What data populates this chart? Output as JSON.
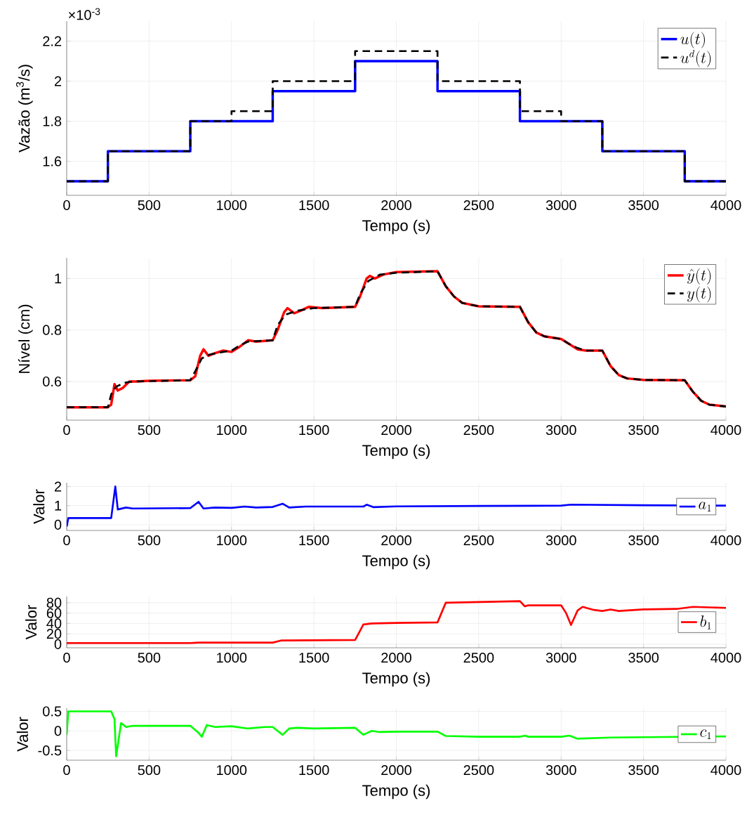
{
  "chart_data": [
    {
      "type": "step",
      "xlabel": "Tempo (s)",
      "ylabel": "Vazão (m$^{3}$/s)",
      "annotations": [
        "×10$^{-3}$"
      ],
      "xlim": [
        0,
        4000
      ],
      "ylim": [
        1.43,
        2.3
      ],
      "xticks": [
        0,
        500,
        1000,
        1500,
        2000,
        2500,
        3000,
        3500,
        4000
      ],
      "yticks": [
        1.6,
        1.8,
        2,
        2.2
      ],
      "grid": true,
      "legend": "top right",
      "series": [
        {
          "name": "u(t)",
          "color": "#0000ff",
          "line_style": "solid",
          "x": [
            0,
            250,
            750,
            1250,
            1750,
            2250,
            2750,
            3250,
            3750,
            4000
          ],
          "values": [
            1.5,
            1.65,
            1.8,
            1.95,
            2.1,
            1.95,
            1.8,
            1.65,
            1.5,
            1.5
          ]
        },
        {
          "name": "u^{d}(t)",
          "color": "#000000",
          "line_style": "dashed",
          "x": [
            0,
            250,
            750,
            1000,
            1250,
            1750,
            2250,
            2750,
            3000,
            3250,
            3750,
            4000
          ],
          "values": [
            1.5,
            1.65,
            1.8,
            1.85,
            2.0,
            2.15,
            2.0,
            1.85,
            1.8,
            1.65,
            1.5,
            1.5
          ]
        }
      ]
    },
    {
      "type": "line",
      "xlabel": "Tempo (s)",
      "ylabel": "Nível (cm)",
      "xlim": [
        0,
        4000
      ],
      "ylim": [
        0.45,
        1.08
      ],
      "xticks": [
        0,
        500,
        1000,
        1500,
        2000,
        2500,
        3000,
        3500,
        4000
      ],
      "yticks": [
        0.6,
        0.8,
        1
      ],
      "grid": true,
      "legend": "top right",
      "series": [
        {
          "name": "\\hat{y}(t)",
          "color": "#ff0000",
          "line_style": "solid",
          "x": [
            0,
            250,
            270,
            290,
            310,
            340,
            380,
            420,
            500,
            750,
            780,
            810,
            830,
            860,
            900,
            950,
            1000,
            1050,
            1100,
            1150,
            1250,
            1280,
            1320,
            1340,
            1380,
            1420,
            1470,
            1550,
            1750,
            1780,
            1820,
            1840,
            1870,
            1920,
            2000,
            2250,
            2300,
            2350,
            2400,
            2500,
            2750,
            2800,
            2850,
            2900,
            3000,
            3050,
            3100,
            3150,
            3250,
            3300,
            3350,
            3400,
            3500,
            3750,
            3800,
            3850,
            3900,
            4000
          ],
          "values": [
            0.5,
            0.5,
            0.51,
            0.59,
            0.565,
            0.575,
            0.6,
            0.6,
            0.603,
            0.605,
            0.62,
            0.7,
            0.725,
            0.7,
            0.71,
            0.72,
            0.715,
            0.735,
            0.76,
            0.755,
            0.76,
            0.8,
            0.87,
            0.885,
            0.865,
            0.875,
            0.89,
            0.885,
            0.89,
            0.93,
            1.0,
            1.01,
            1.0,
            1.015,
            1.025,
            1.028,
            0.97,
            0.93,
            0.905,
            0.892,
            0.89,
            0.83,
            0.79,
            0.775,
            0.765,
            0.745,
            0.725,
            0.72,
            0.72,
            0.66,
            0.625,
            0.612,
            0.606,
            0.605,
            0.56,
            0.525,
            0.51,
            0.503
          ]
        },
        {
          "name": "y(t)",
          "color": "#000000",
          "line_style": "dashed",
          "x": [
            0,
            250,
            270,
            300,
            350,
            400,
            750,
            780,
            820,
            870,
            950,
            1000,
            1050,
            1100,
            1250,
            1280,
            1330,
            1400,
            1500,
            1750,
            1780,
            1830,
            1900,
            2000,
            2250,
            2300,
            2350,
            2400,
            2500,
            2750,
            2800,
            2850,
            2900,
            3000,
            3050,
            3100,
            3150,
            3250,
            3300,
            3350,
            3400,
            3500,
            3750,
            3800,
            3850,
            3900,
            4000
          ],
          "values": [
            0.5,
            0.5,
            0.55,
            0.58,
            0.595,
            0.6,
            0.605,
            0.64,
            0.69,
            0.705,
            0.715,
            0.72,
            0.74,
            0.755,
            0.76,
            0.82,
            0.86,
            0.875,
            0.885,
            0.89,
            0.94,
            0.99,
            1.015,
            1.022,
            1.028,
            0.97,
            0.93,
            0.905,
            0.892,
            0.89,
            0.83,
            0.79,
            0.775,
            0.765,
            0.745,
            0.73,
            0.72,
            0.72,
            0.66,
            0.625,
            0.612,
            0.606,
            0.605,
            0.56,
            0.525,
            0.51,
            0.503
          ]
        }
      ]
    },
    {
      "type": "line",
      "xlabel": "Tempo (s)",
      "ylabel": "Valor",
      "xlim": [
        0,
        4000
      ],
      "ylim": [
        -0.3,
        2.2
      ],
      "xticks": [
        0,
        500,
        1000,
        1500,
        2000,
        2500,
        3000,
        3500,
        4000
      ],
      "yticks": [
        0,
        1,
        2
      ],
      "grid": true,
      "legend": "right",
      "series": [
        {
          "name": "a_{1}",
          "color": "#0000ff",
          "line_style": "solid",
          "x": [
            0,
            10,
            270,
            295,
            310,
            360,
            400,
            750,
            800,
            830,
            900,
            1000,
            1080,
            1150,
            1250,
            1310,
            1350,
            1450,
            1800,
            1820,
            1860,
            2000,
            2500,
            3000,
            3060,
            3500,
            4000
          ],
          "values": [
            -0.1,
            0.35,
            0.35,
            2.0,
            0.8,
            0.9,
            0.85,
            0.87,
            1.2,
            0.85,
            0.9,
            0.88,
            0.95,
            0.9,
            0.93,
            1.1,
            0.9,
            0.95,
            0.95,
            1.05,
            0.92,
            0.96,
            0.98,
            1.0,
            1.05,
            1.02,
            1.0
          ]
        }
      ]
    },
    {
      "type": "line",
      "xlabel": "Tempo (s)",
      "ylabel": "Valor",
      "xlim": [
        0,
        4000
      ],
      "ylim": [
        -7,
        92
      ],
      "xticks": [
        0,
        500,
        1000,
        1500,
        2000,
        2500,
        3000,
        3500,
        4000
      ],
      "yticks": [
        0,
        20,
        40,
        60,
        80
      ],
      "grid": true,
      "legend": "right",
      "series": [
        {
          "name": "b_{1}",
          "color": "#ff0000",
          "line_style": "solid",
          "x": [
            0,
            750,
            800,
            1250,
            1300,
            1750,
            1800,
            1850,
            2000,
            2250,
            2300,
            2750,
            2780,
            2800,
            3000,
            3030,
            3060,
            3100,
            3130,
            3200,
            3250,
            3300,
            3350,
            3500,
            3700,
            3800,
            4000
          ],
          "values": [
            2,
            2,
            3,
            3,
            7,
            8,
            38,
            40,
            41,
            42,
            80,
            83,
            73,
            75,
            75,
            60,
            37,
            65,
            72,
            66,
            64,
            67,
            64,
            67,
            68,
            72,
            70
          ]
        }
      ]
    },
    {
      "type": "line",
      "xlabel": "Tempo (s)",
      "ylabel": "Valor",
      "xlim": [
        0,
        4000
      ],
      "ylim": [
        -0.75,
        0.58
      ],
      "xticks": [
        0,
        500,
        1000,
        1500,
        2000,
        2500,
        3000,
        3500,
        4000
      ],
      "yticks": [
        -0.5,
        0,
        0.5
      ],
      "grid": true,
      "legend": "right",
      "series": [
        {
          "name": "c_{1}",
          "color": "#00ff00",
          "line_style": "solid",
          "x": [
            0,
            10,
            270,
            290,
            300,
            330,
            360,
            400,
            750,
            800,
            820,
            850,
            900,
            1000,
            1100,
            1200,
            1250,
            1310,
            1350,
            1400,
            1500,
            1750,
            1800,
            1850,
            1900,
            2000,
            2250,
            2300,
            2500,
            2750,
            2780,
            2800,
            3000,
            3050,
            3100,
            3300,
            4000
          ],
          "values": [
            -0.1,
            0.5,
            0.5,
            0.3,
            -0.65,
            0.2,
            0.1,
            0.13,
            0.13,
            -0.05,
            -0.15,
            0.15,
            0.1,
            0.12,
            0.06,
            0.1,
            0.1,
            -0.1,
            0.06,
            0.08,
            0.06,
            0.08,
            -0.1,
            0.0,
            -0.03,
            -0.02,
            -0.02,
            -0.13,
            -0.15,
            -0.15,
            -0.12,
            -0.15,
            -0.15,
            -0.12,
            -0.2,
            -0.17,
            -0.14
          ]
        }
      ]
    }
  ]
}
